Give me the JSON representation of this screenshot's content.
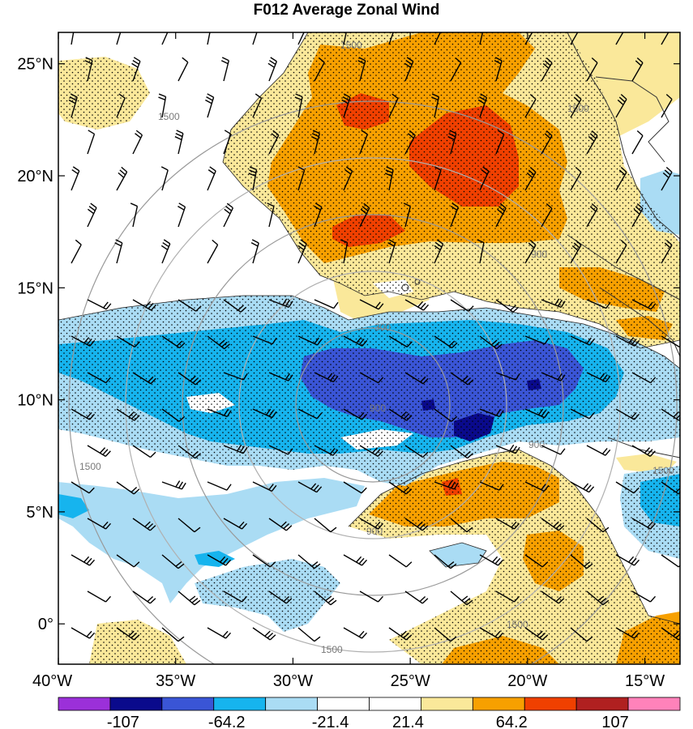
{
  "title": "F012 Average Zonal Wind",
  "map": {
    "lat_range": [
      -1.8,
      26.4
    ],
    "lon_range": [
      -40,
      -13.5
    ],
    "lat_ticks": [
      {
        "value": 25,
        "label": "25°N"
      },
      {
        "value": 20,
        "label": "20°N"
      },
      {
        "value": 15,
        "label": "15°N"
      },
      {
        "value": 10,
        "label": "10°N"
      },
      {
        "value": 5,
        "label": "5°N"
      },
      {
        "value": 0,
        "label": "0°"
      }
    ],
    "lon_ticks": [
      {
        "value": -40,
        "label": "40°W"
      },
      {
        "value": -35,
        "label": "35°W"
      },
      {
        "value": -30,
        "label": "30°W"
      },
      {
        "value": -25,
        "label": "25°W"
      },
      {
        "value": -20,
        "label": "20°W"
      },
      {
        "value": -15,
        "label": "15°W"
      }
    ],
    "range_rings": {
      "center": {
        "lon": -24.5,
        "lat": 10.4
      },
      "labels": [
        "300",
        "900",
        "1500"
      ]
    }
  },
  "colorbar": {
    "colors": [
      "#9b30d9",
      "#0a0a8c",
      "#3a55d6",
      "#16b4ee",
      "#aadcf4",
      "#ffffff",
      "#ffffff",
      "#fae89a",
      "#f7a000",
      "#f04000",
      "#b02020",
      "#ff82ba"
    ],
    "labels": [
      "-107",
      "-64.2",
      "-21.4",
      "21.4",
      "64.2",
      "107"
    ]
  },
  "palette": {
    "strong_pos": "#f04000",
    "pos": "#f7a000",
    "weak_pos": "#fae89a",
    "weak_neg": "#aadcf4",
    "neg": "#16b4ee",
    "strong_neg": "#3a55d6",
    "extreme_neg": "#0a0a8c",
    "ring_color": "#999999",
    "coast_color": "#333333"
  }
}
